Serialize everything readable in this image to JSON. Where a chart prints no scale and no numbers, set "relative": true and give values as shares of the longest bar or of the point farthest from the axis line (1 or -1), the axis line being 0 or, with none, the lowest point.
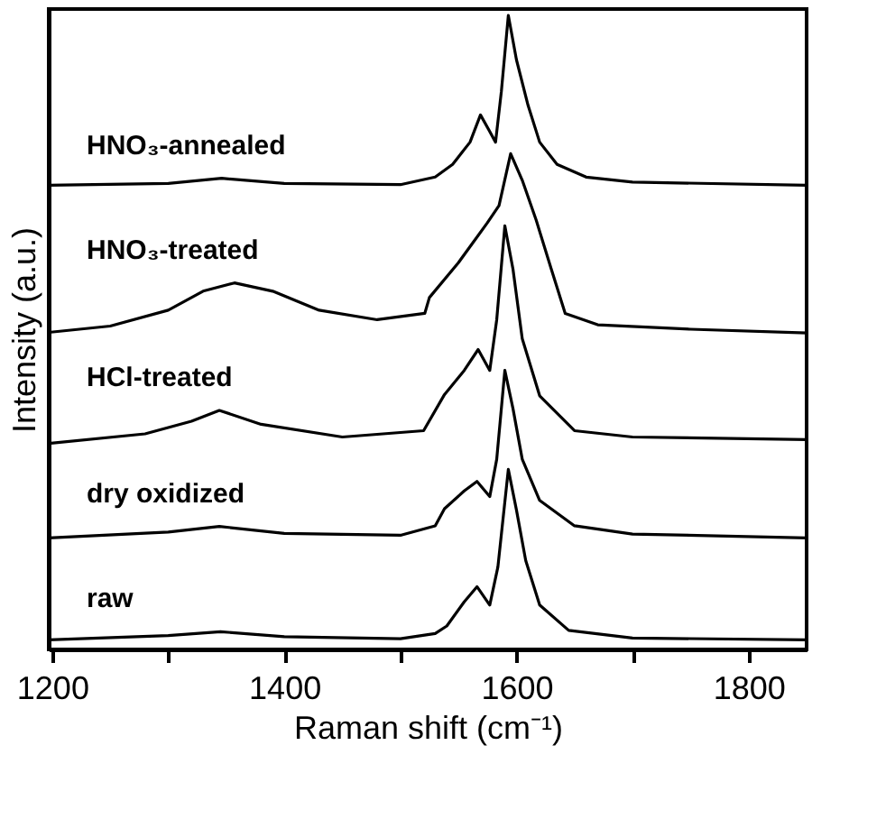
{
  "chart_data": {
    "type": "line",
    "relative": true,
    "xlabel": "Raman shift (cm⁻¹)",
    "ylabel": "Intensity (a.u.)",
    "xlim": [
      1197,
      1850
    ],
    "xticks": [
      1200,
      {
        "value": 1300,
        "label": null
      },
      1400,
      {
        "value": 1500,
        "label": null
      },
      1600,
      {
        "value": 1700,
        "label": null
      },
      1800
    ],
    "legend": false,
    "grid": false,
    "marker": "none",
    "line_style": "solid",
    "tick_labels": "x",
    "series": [
      {
        "name": "HNO₃-annealed",
        "color": "#000000",
        "x": [
          1197,
          1300,
          1346,
          1400,
          1500,
          1530,
          1545,
          1560,
          1569,
          1576,
          1582,
          1587,
          1593,
          1600,
          1610,
          1620,
          1635,
          1660,
          1700,
          1850
        ],
        "values": [
          0.732,
          0.735,
          0.743,
          0.735,
          0.733,
          0.745,
          0.765,
          0.8,
          0.843,
          0.82,
          0.8,
          0.88,
          1.0,
          0.93,
          0.858,
          0.8,
          0.765,
          0.745,
          0.737,
          0.732
        ]
      },
      {
        "name": "HNO₃-treated",
        "color": "#000000",
        "x": [
          1197,
          1250,
          1300,
          1330,
          1357,
          1390,
          1430,
          1480,
          1521,
          1525,
          1550,
          1575,
          1585,
          1595,
          1605,
          1617,
          1630,
          1642,
          1670,
          1750,
          1850
        ],
        "values": [
          0.5,
          0.51,
          0.535,
          0.565,
          0.578,
          0.565,
          0.535,
          0.52,
          0.53,
          0.555,
          0.61,
          0.673,
          0.7,
          0.782,
          0.74,
          0.677,
          0.6,
          0.53,
          0.512,
          0.505,
          0.499
        ]
      },
      {
        "name": "HCl-treated",
        "color": "#000000",
        "x": [
          1197,
          1280,
          1320,
          1344,
          1380,
          1450,
          1520,
          1538,
          1555,
          1567,
          1577,
          1583,
          1590,
          1597,
          1605,
          1620,
          1650,
          1700,
          1850
        ],
        "values": [
          0.325,
          0.34,
          0.36,
          0.377,
          0.355,
          0.335,
          0.345,
          0.402,
          0.44,
          0.473,
          0.44,
          0.52,
          0.668,
          0.6,
          0.49,
          0.4,
          0.345,
          0.335,
          0.331
        ]
      },
      {
        "name": "dry oxidized",
        "color": "#000000",
        "x": [
          1197,
          1300,
          1344,
          1400,
          1500,
          1530,
          1538,
          1555,
          1566,
          1577,
          1583,
          1590,
          1597,
          1605,
          1620,
          1650,
          1700,
          1850
        ],
        "values": [
          0.176,
          0.185,
          0.194,
          0.183,
          0.18,
          0.195,
          0.222,
          0.25,
          0.265,
          0.241,
          0.3,
          0.44,
          0.38,
          0.3,
          0.235,
          0.195,
          0.182,
          0.176
        ]
      },
      {
        "name": "raw",
        "color": "#000000",
        "x": [
          1197,
          1300,
          1345,
          1400,
          1500,
          1530,
          1540,
          1555,
          1566,
          1577,
          1584,
          1593,
          1600,
          1608,
          1620,
          1645,
          1700,
          1850
        ],
        "values": [
          0.015,
          0.022,
          0.028,
          0.02,
          0.017,
          0.025,
          0.037,
          0.075,
          0.099,
          0.07,
          0.13,
          0.284,
          0.22,
          0.14,
          0.07,
          0.03,
          0.018,
          0.015
        ]
      }
    ]
  }
}
